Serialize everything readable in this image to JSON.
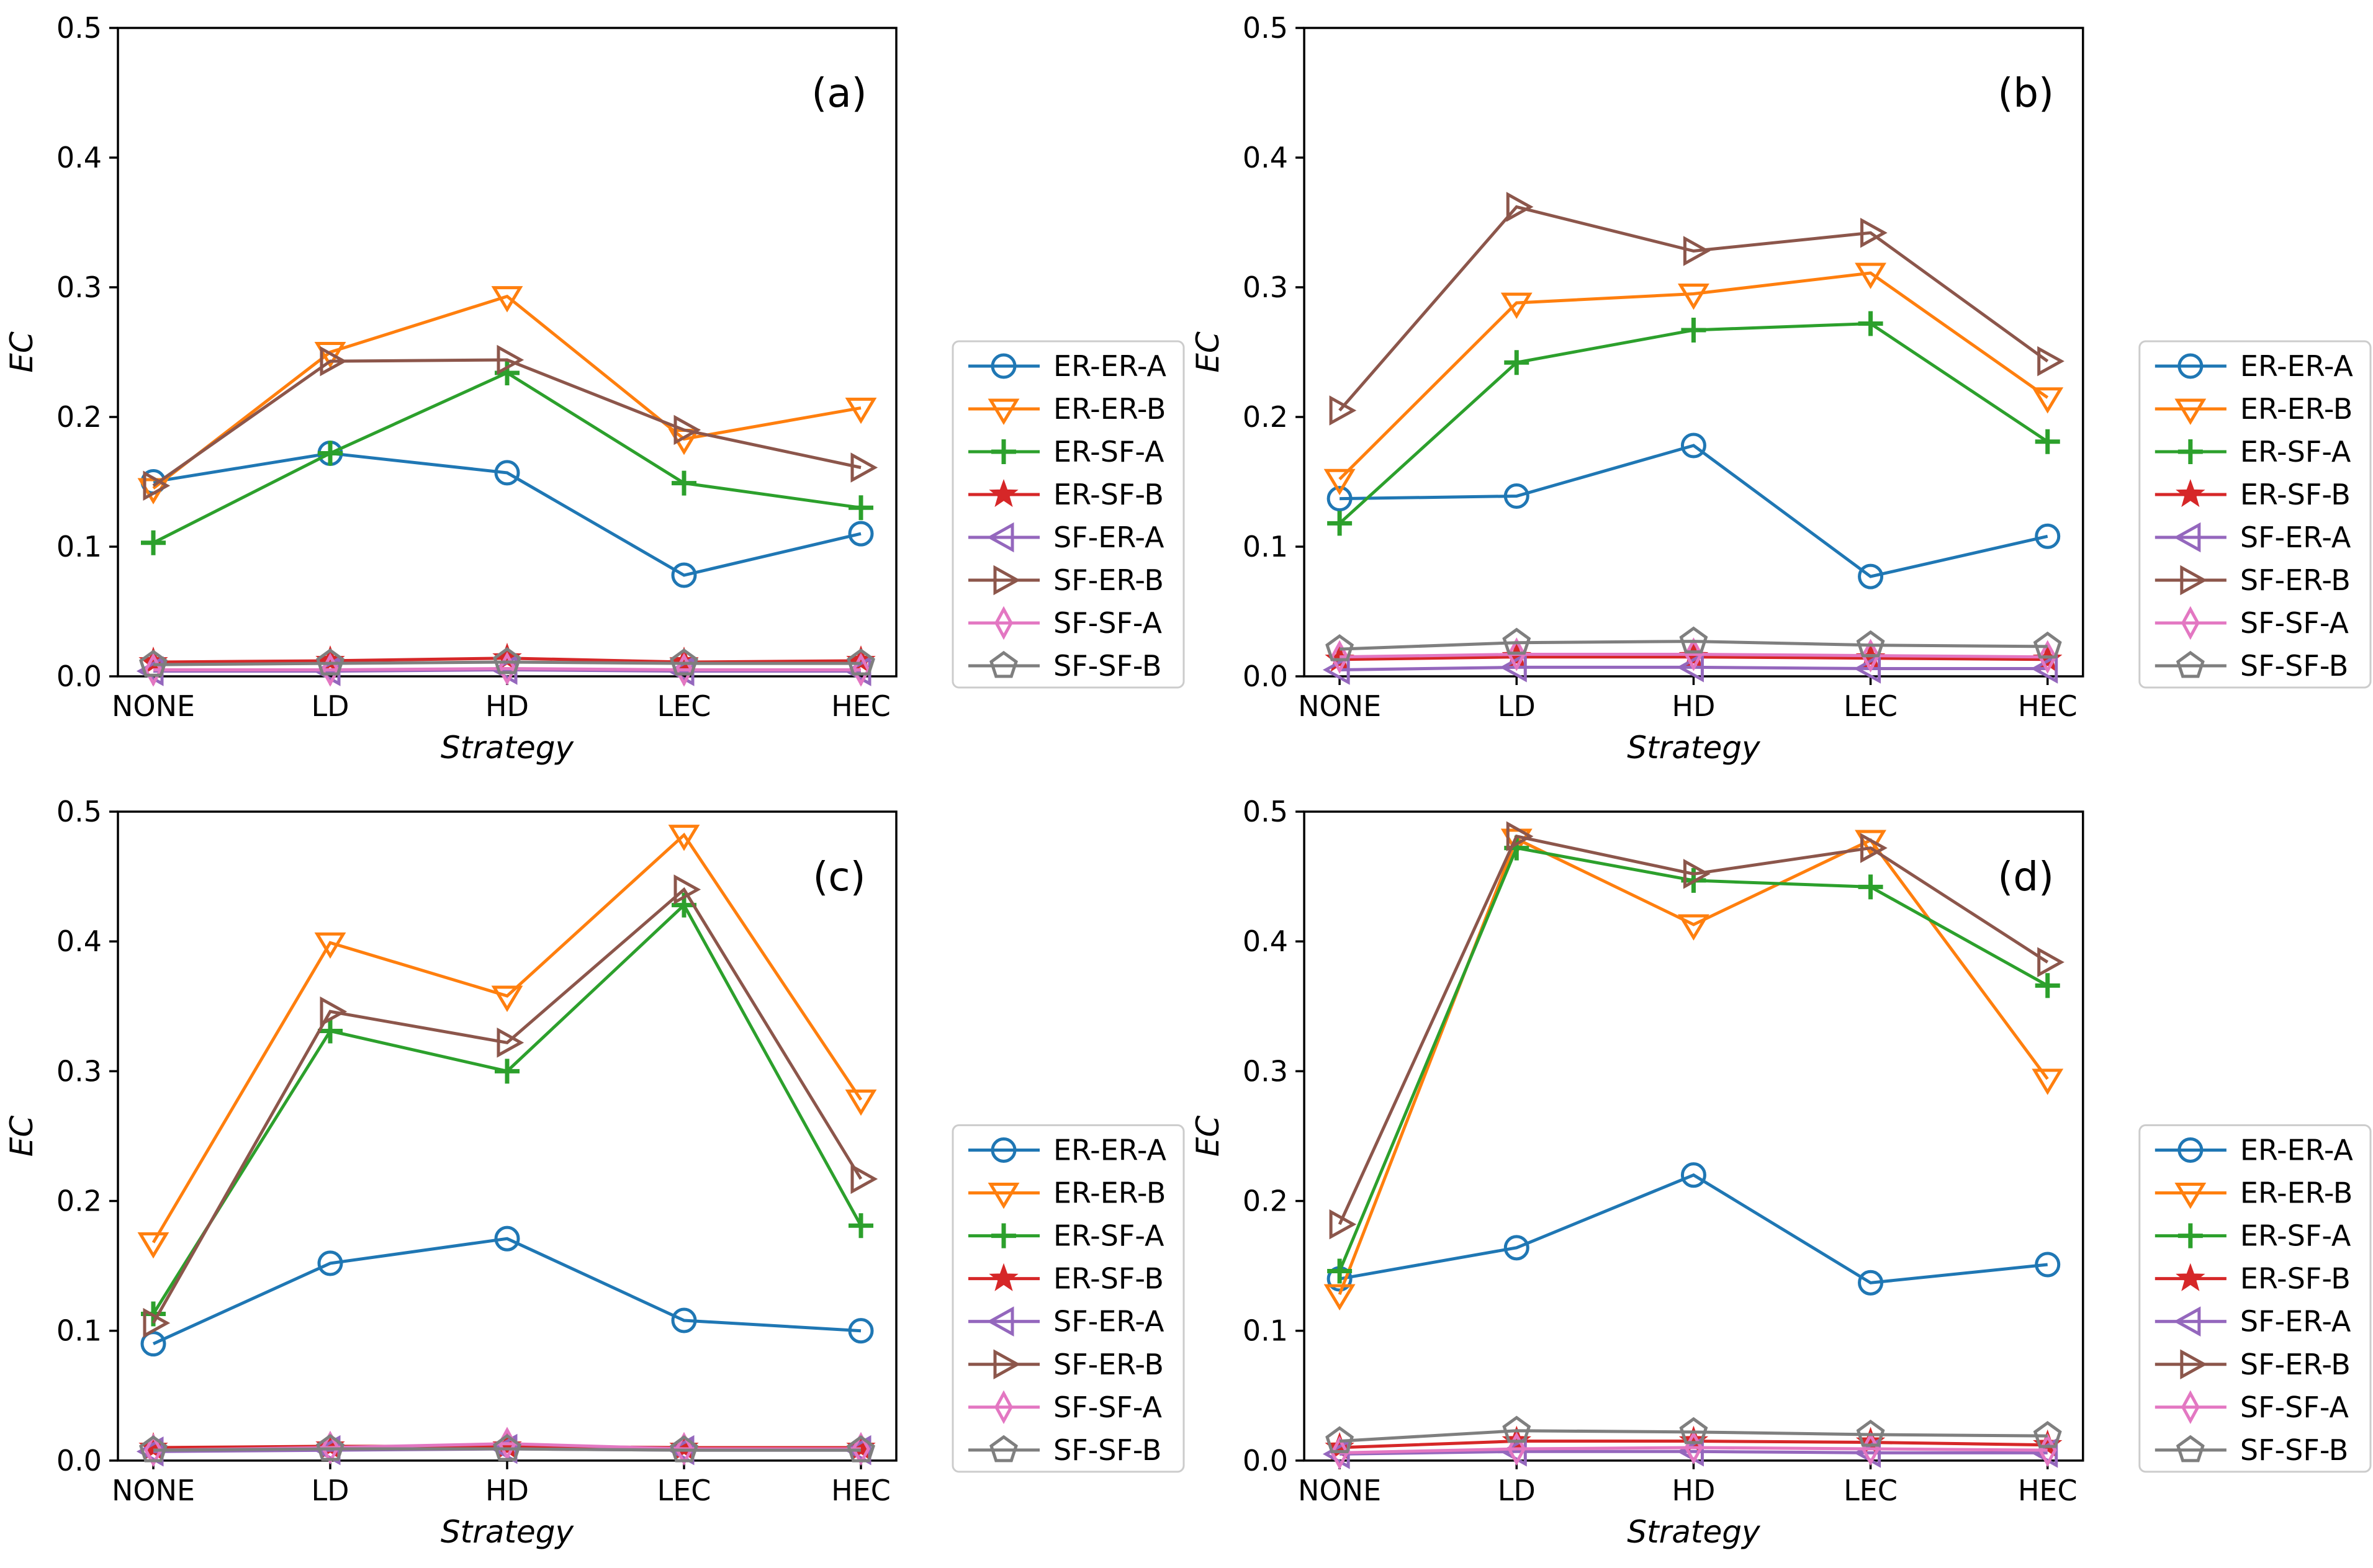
{
  "figure": {
    "background": "#ffffff",
    "axis_color": "#000000",
    "legend_border_color": "#cccccc",
    "legend_background": "#ffffff"
  },
  "chart_data": [
    {
      "type": "line",
      "panel_label": "(a)",
      "panel_id": "a",
      "title": "",
      "xlabel": "Strategy",
      "ylabel": "EC",
      "categories": [
        "NONE",
        "LD",
        "HD",
        "LEC",
        "HEC"
      ],
      "ylim": [
        0.0,
        0.5
      ],
      "yticks": [
        "0.0",
        "0.1",
        "0.2",
        "0.3",
        "0.4",
        "0.5"
      ],
      "grid": false,
      "legend_position": "outside-right",
      "series": [
        {
          "name": "ER-ER-A",
          "color": "#1f77b4",
          "marker": "circle",
          "values": [
            0.15,
            0.172,
            0.157,
            0.078,
            0.11
          ]
        },
        {
          "name": "ER-ER-B",
          "color": "#ff7f0e",
          "marker": "triangle-down",
          "values": [
            0.145,
            0.25,
            0.293,
            0.183,
            0.207
          ]
        },
        {
          "name": "ER-SF-A",
          "color": "#2ca02c",
          "marker": "plus",
          "values": [
            0.103,
            0.172,
            0.234,
            0.149,
            0.13
          ]
        },
        {
          "name": "ER-SF-B",
          "color": "#d62728",
          "marker": "star",
          "values": [
            0.011,
            0.012,
            0.014,
            0.011,
            0.012
          ]
        },
        {
          "name": "SF-ER-A",
          "color": "#9467bd",
          "marker": "triangle-left",
          "values": [
            0.004,
            0.004,
            0.005,
            0.004,
            0.004
          ]
        },
        {
          "name": "SF-ER-B",
          "color": "#8c564b",
          "marker": "triangle-right",
          "values": [
            0.147,
            0.243,
            0.244,
            0.19,
            0.161
          ]
        },
        {
          "name": "SF-SF-A",
          "color": "#e377c2",
          "marker": "thin-diamond",
          "values": [
            0.005,
            0.005,
            0.006,
            0.005,
            0.005
          ]
        },
        {
          "name": "SF-SF-B",
          "color": "#7f7f7f",
          "marker": "pentagon",
          "values": [
            0.009,
            0.01,
            0.011,
            0.01,
            0.01
          ]
        }
      ]
    },
    {
      "type": "line",
      "panel_label": "(b)",
      "panel_id": "b",
      "title": "",
      "xlabel": "Strategy",
      "ylabel": "EC",
      "categories": [
        "NONE",
        "LD",
        "HD",
        "LEC",
        "HEC"
      ],
      "ylim": [
        0.0,
        0.5
      ],
      "yticks": [
        "0.0",
        "0.1",
        "0.2",
        "0.3",
        "0.4",
        "0.5"
      ],
      "grid": false,
      "legend_position": "outside-right",
      "series": [
        {
          "name": "ER-ER-A",
          "color": "#1f77b4",
          "marker": "circle",
          "values": [
            0.137,
            0.139,
            0.178,
            0.077,
            0.108
          ]
        },
        {
          "name": "ER-ER-B",
          "color": "#ff7f0e",
          "marker": "triangle-down",
          "values": [
            0.152,
            0.288,
            0.295,
            0.311,
            0.215
          ]
        },
        {
          "name": "ER-SF-A",
          "color": "#2ca02c",
          "marker": "plus",
          "values": [
            0.118,
            0.242,
            0.267,
            0.272,
            0.181
          ]
        },
        {
          "name": "ER-SF-B",
          "color": "#d62728",
          "marker": "star",
          "values": [
            0.013,
            0.015,
            0.015,
            0.014,
            0.013
          ]
        },
        {
          "name": "SF-ER-A",
          "color": "#9467bd",
          "marker": "triangle-left",
          "values": [
            0.005,
            0.007,
            0.007,
            0.006,
            0.006
          ]
        },
        {
          "name": "SF-ER-B",
          "color": "#8c564b",
          "marker": "triangle-right",
          "values": [
            0.205,
            0.362,
            0.328,
            0.342,
            0.243
          ]
        },
        {
          "name": "SF-SF-A",
          "color": "#e377c2",
          "marker": "thin-diamond",
          "values": [
            0.015,
            0.017,
            0.017,
            0.016,
            0.015
          ]
        },
        {
          "name": "SF-SF-B",
          "color": "#7f7f7f",
          "marker": "pentagon",
          "values": [
            0.021,
            0.026,
            0.027,
            0.024,
            0.023
          ]
        }
      ]
    },
    {
      "type": "line",
      "panel_label": "(c)",
      "panel_id": "c",
      "title": "",
      "xlabel": "Strategy",
      "ylabel": "EC",
      "categories": [
        "NONE",
        "LD",
        "HD",
        "LEC",
        "HEC"
      ],
      "ylim": [
        0.0,
        0.5
      ],
      "yticks": [
        "0.0",
        "0.1",
        "0.2",
        "0.3",
        "0.4",
        "0.5"
      ],
      "grid": false,
      "legend_position": "outside-right",
      "series": [
        {
          "name": "ER-ER-A",
          "color": "#1f77b4",
          "marker": "circle",
          "values": [
            0.09,
            0.152,
            0.171,
            0.108,
            0.1
          ]
        },
        {
          "name": "ER-ER-B",
          "color": "#ff7f0e",
          "marker": "triangle-down",
          "values": [
            0.168,
            0.399,
            0.358,
            0.482,
            0.278
          ]
        },
        {
          "name": "ER-SF-A",
          "color": "#2ca02c",
          "marker": "plus",
          "values": [
            0.113,
            0.331,
            0.3,
            0.428,
            0.181
          ]
        },
        {
          "name": "ER-SF-B",
          "color": "#d62728",
          "marker": "star",
          "values": [
            0.01,
            0.011,
            0.011,
            0.01,
            0.01
          ]
        },
        {
          "name": "SF-ER-A",
          "color": "#9467bd",
          "marker": "triangle-left",
          "values": [
            0.007,
            0.008,
            0.009,
            0.008,
            0.008
          ]
        },
        {
          "name": "SF-ER-B",
          "color": "#8c564b",
          "marker": "triangle-right",
          "values": [
            0.106,
            0.346,
            0.322,
            0.44,
            0.217
          ]
        },
        {
          "name": "SF-SF-A",
          "color": "#e377c2",
          "marker": "thin-diamond",
          "values": [
            0.008,
            0.01,
            0.013,
            0.009,
            0.009
          ]
        },
        {
          "name": "SF-SF-B",
          "color": "#7f7f7f",
          "marker": "pentagon",
          "values": [
            0.008,
            0.009,
            0.009,
            0.008,
            0.008
          ]
        }
      ]
    },
    {
      "type": "line",
      "panel_label": "(d)",
      "panel_id": "d",
      "title": "",
      "xlabel": "Strategy",
      "ylabel": "EC",
      "categories": [
        "NONE",
        "LD",
        "HD",
        "LEC",
        "HEC"
      ],
      "ylim": [
        0.0,
        0.5
      ],
      "yticks": [
        "0.0",
        "0.1",
        "0.2",
        "0.3",
        "0.4",
        "0.5"
      ],
      "grid": false,
      "legend_position": "outside-right",
      "series": [
        {
          "name": "ER-ER-A",
          "color": "#1f77b4",
          "marker": "circle",
          "values": [
            0.14,
            0.164,
            0.22,
            0.137,
            0.151
          ]
        },
        {
          "name": "ER-ER-B",
          "color": "#ff7f0e",
          "marker": "triangle-down",
          "values": [
            0.128,
            0.479,
            0.413,
            0.478,
            0.294
          ]
        },
        {
          "name": "ER-SF-A",
          "color": "#2ca02c",
          "marker": "plus",
          "values": [
            0.146,
            0.472,
            0.447,
            0.442,
            0.366
          ]
        },
        {
          "name": "ER-SF-B",
          "color": "#d62728",
          "marker": "star",
          "values": [
            0.01,
            0.015,
            0.015,
            0.014,
            0.012
          ]
        },
        {
          "name": "SF-ER-A",
          "color": "#9467bd",
          "marker": "triangle-left",
          "values": [
            0.005,
            0.007,
            0.007,
            0.006,
            0.006
          ]
        },
        {
          "name": "SF-ER-B",
          "color": "#8c564b",
          "marker": "triangle-right",
          "values": [
            0.182,
            0.481,
            0.452,
            0.472,
            0.384
          ]
        },
        {
          "name": "SF-SF-A",
          "color": "#e377c2",
          "marker": "thin-diamond",
          "values": [
            0.006,
            0.009,
            0.01,
            0.009,
            0.008
          ]
        },
        {
          "name": "SF-SF-B",
          "color": "#7f7f7f",
          "marker": "pentagon",
          "values": [
            0.015,
            0.023,
            0.022,
            0.02,
            0.019
          ]
        }
      ]
    }
  ]
}
